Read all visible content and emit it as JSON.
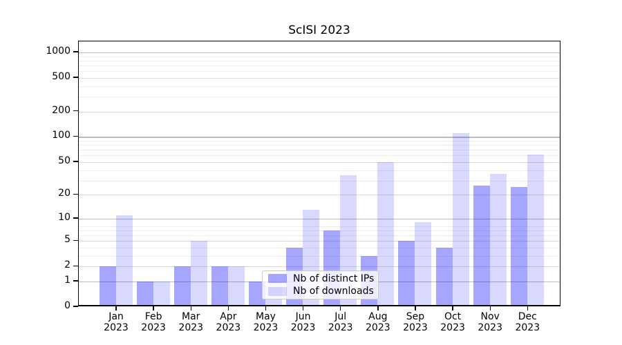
{
  "chart_data": {
    "type": "bar",
    "title": "ScISI 2023",
    "categories": [
      "Jan",
      "Feb",
      "Mar",
      "Apr",
      "May",
      "Jun",
      "Jul",
      "Aug",
      "Sep",
      "Oct",
      "Nov",
      "Dec"
    ],
    "category_year": "2023",
    "series": [
      {
        "name": "Nb of distinct IPs",
        "color": "rgba(0,0,255,0.35)",
        "values": [
          2,
          1,
          2,
          2,
          1,
          4,
          7,
          3,
          5,
          4,
          26,
          25
        ]
      },
      {
        "name": "Nb of downloads",
        "color": "rgba(0,0,255,0.15)",
        "values": [
          11,
          1,
          5,
          2,
          1,
          13,
          35,
          50,
          9,
          110,
          36,
          62
        ]
      }
    ],
    "yscale": "log1p",
    "yticks": [
      0,
      1,
      2,
      5,
      10,
      20,
      50,
      100,
      200,
      500,
      1000
    ],
    "ylim": [
      0,
      1350
    ],
    "grid": true,
    "legend_position": "lower center-left",
    "colors": {
      "grid_major": "#bbbbbb",
      "grid_mid": "#dcdcdc",
      "grid_minor": "#eeeeee",
      "axis": "#000000",
      "background": "#ffffff"
    }
  }
}
